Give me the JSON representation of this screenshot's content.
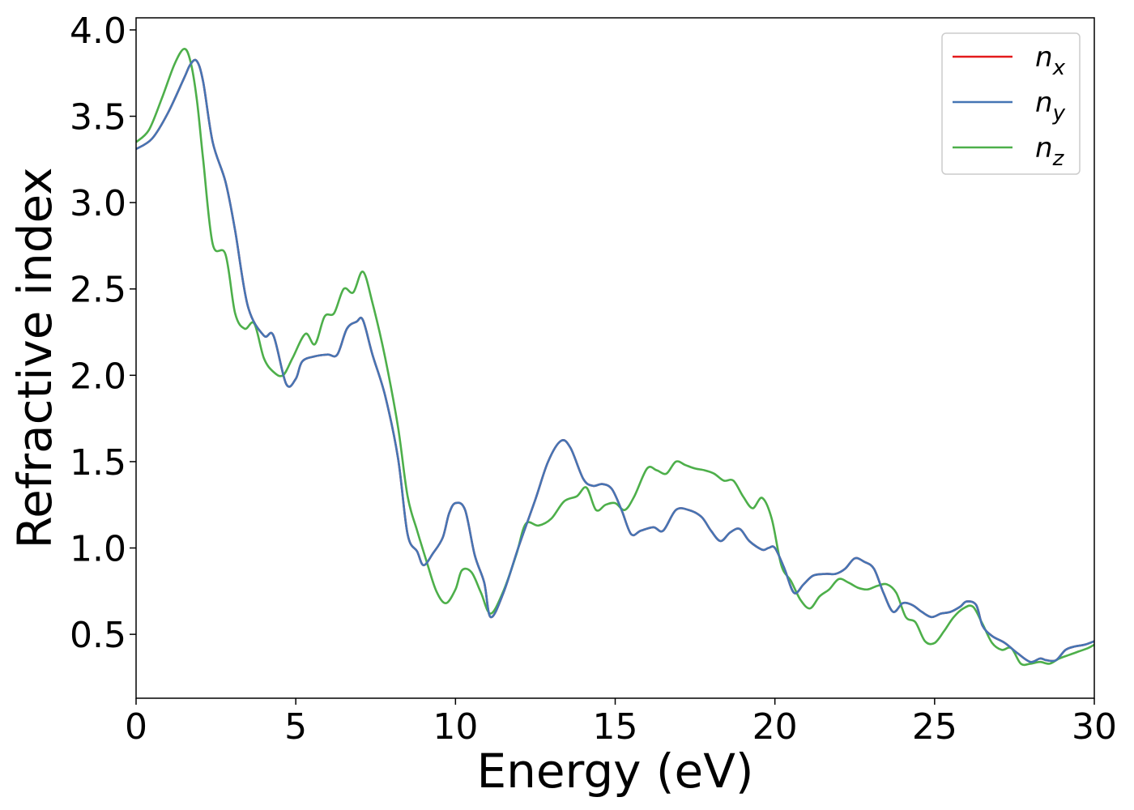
{
  "chart_data": {
    "type": "line",
    "title": "",
    "xlabel": "Energy (eV)",
    "ylabel": "Refractive index",
    "xlim": [
      0,
      30
    ],
    "ylim": [
      0.13,
      4.07
    ],
    "xticks": [
      0,
      5,
      10,
      15,
      20,
      25,
      30
    ],
    "xtick_labels": [
      "0",
      "5",
      "10",
      "15",
      "20",
      "25",
      "30"
    ],
    "yticks": [
      0.5,
      1.0,
      1.5,
      2.0,
      2.5,
      3.0,
      3.5,
      4.0
    ],
    "ytick_labels": [
      "0.5",
      "1.0",
      "1.5",
      "2.0",
      "2.5",
      "3.0",
      "3.5",
      "4.0"
    ],
    "grid": false,
    "legend_position": "top-right",
    "series": [
      {
        "name": "n",
        "sub": "x",
        "color": "#e41a1c",
        "x": [
          0,
          0.5,
          1.0,
          1.5,
          1.7,
          1.9,
          2.1,
          2.4,
          2.8,
          3.1,
          3.5,
          4.0,
          4.3,
          4.7,
          5.0,
          5.2,
          5.6,
          6.0,
          6.3,
          6.6,
          6.9,
          7.1,
          7.4,
          7.8,
          8.2,
          8.5,
          8.8,
          9.0,
          9.3,
          9.6,
          9.8,
          10.0,
          10.3,
          10.6,
          10.9,
          11.1,
          11.5,
          12.0,
          12.5,
          12.9,
          13.3,
          13.6,
          14.0,
          14.3,
          14.6,
          14.9,
          15.2,
          15.5,
          15.8,
          16.2,
          16.5,
          16.9,
          17.3,
          17.7,
          18.0,
          18.3,
          18.6,
          18.9,
          19.2,
          19.6,
          19.8,
          20.0,
          20.3,
          20.6,
          20.9,
          21.2,
          21.6,
          21.9,
          22.2,
          22.5,
          22.8,
          23.1,
          23.4,
          23.7,
          24.0,
          24.3,
          24.6,
          24.9,
          25.2,
          25.5,
          25.8,
          26.0,
          26.3,
          26.5,
          26.8,
          27.2,
          27.6,
          28.0,
          28.3,
          28.5,
          28.8,
          29.1,
          29.4,
          29.7,
          30.0
        ],
        "y": [
          3.31,
          3.37,
          3.52,
          3.72,
          3.8,
          3.82,
          3.7,
          3.35,
          3.12,
          2.84,
          2.4,
          2.23,
          2.23,
          1.95,
          1.98,
          2.08,
          2.11,
          2.12,
          2.12,
          2.27,
          2.31,
          2.32,
          2.12,
          1.88,
          1.52,
          1.08,
          0.98,
          0.9,
          0.97,
          1.06,
          1.2,
          1.26,
          1.22,
          0.96,
          0.8,
          0.6,
          0.74,
          1.02,
          1.28,
          1.5,
          1.62,
          1.58,
          1.4,
          1.36,
          1.37,
          1.34,
          1.22,
          1.08,
          1.1,
          1.12,
          1.1,
          1.22,
          1.22,
          1.18,
          1.1,
          1.04,
          1.09,
          1.11,
          1.04,
          0.99,
          1.0,
          1.0,
          0.88,
          0.74,
          0.79,
          0.84,
          0.85,
          0.85,
          0.88,
          0.94,
          0.92,
          0.88,
          0.74,
          0.63,
          0.68,
          0.67,
          0.63,
          0.6,
          0.62,
          0.63,
          0.66,
          0.69,
          0.67,
          0.55,
          0.49,
          0.45,
          0.39,
          0.34,
          0.36,
          0.35,
          0.35,
          0.41,
          0.43,
          0.44,
          0.46
        ]
      },
      {
        "name": "n",
        "sub": "y",
        "color": "#4575b4",
        "x": [
          0,
          0.5,
          1.0,
          1.5,
          1.7,
          1.9,
          2.1,
          2.4,
          2.8,
          3.1,
          3.5,
          4.0,
          4.3,
          4.7,
          5.0,
          5.2,
          5.6,
          6.0,
          6.3,
          6.6,
          6.9,
          7.1,
          7.4,
          7.8,
          8.2,
          8.5,
          8.8,
          9.0,
          9.3,
          9.6,
          9.8,
          10.0,
          10.3,
          10.6,
          10.9,
          11.1,
          11.5,
          12.0,
          12.5,
          12.9,
          13.3,
          13.6,
          14.0,
          14.3,
          14.6,
          14.9,
          15.2,
          15.5,
          15.8,
          16.2,
          16.5,
          16.9,
          17.3,
          17.7,
          18.0,
          18.3,
          18.6,
          18.9,
          19.2,
          19.6,
          19.8,
          20.0,
          20.3,
          20.6,
          20.9,
          21.2,
          21.6,
          21.9,
          22.2,
          22.5,
          22.8,
          23.1,
          23.4,
          23.7,
          24.0,
          24.3,
          24.6,
          24.9,
          25.2,
          25.5,
          25.8,
          26.0,
          26.3,
          26.5,
          26.8,
          27.2,
          27.6,
          28.0,
          28.3,
          28.5,
          28.8,
          29.1,
          29.4,
          29.7,
          30.0
        ],
        "y": [
          3.31,
          3.37,
          3.52,
          3.72,
          3.8,
          3.82,
          3.7,
          3.35,
          3.12,
          2.84,
          2.4,
          2.23,
          2.23,
          1.95,
          1.98,
          2.08,
          2.11,
          2.12,
          2.12,
          2.27,
          2.31,
          2.32,
          2.12,
          1.88,
          1.52,
          1.08,
          0.98,
          0.9,
          0.97,
          1.06,
          1.2,
          1.26,
          1.22,
          0.96,
          0.8,
          0.6,
          0.74,
          1.02,
          1.28,
          1.5,
          1.62,
          1.58,
          1.4,
          1.36,
          1.37,
          1.34,
          1.22,
          1.08,
          1.1,
          1.12,
          1.1,
          1.22,
          1.22,
          1.18,
          1.1,
          1.04,
          1.09,
          1.11,
          1.04,
          0.99,
          1.0,
          1.0,
          0.88,
          0.74,
          0.79,
          0.84,
          0.85,
          0.85,
          0.88,
          0.94,
          0.92,
          0.88,
          0.74,
          0.63,
          0.68,
          0.67,
          0.63,
          0.6,
          0.62,
          0.63,
          0.66,
          0.69,
          0.67,
          0.55,
          0.49,
          0.45,
          0.39,
          0.34,
          0.36,
          0.35,
          0.35,
          0.41,
          0.43,
          0.44,
          0.46
        ]
      },
      {
        "name": "n",
        "sub": "z",
        "color": "#4daf4a",
        "x": [
          0,
          0.4,
          0.8,
          1.2,
          1.5,
          1.7,
          1.9,
          2.1,
          2.4,
          2.8,
          3.1,
          3.4,
          3.7,
          4.0,
          4.3,
          4.6,
          4.9,
          5.3,
          5.6,
          5.9,
          6.2,
          6.5,
          6.8,
          7.1,
          7.4,
          7.8,
          8.2,
          8.5,
          8.8,
          9.1,
          9.4,
          9.7,
          10.0,
          10.2,
          10.5,
          10.8,
          11.1,
          11.5,
          11.9,
          12.2,
          12.6,
          13.0,
          13.4,
          13.8,
          14.1,
          14.4,
          14.7,
          15.0,
          15.3,
          15.6,
          16.0,
          16.3,
          16.6,
          16.9,
          17.2,
          17.5,
          17.8,
          18.1,
          18.4,
          18.7,
          19.0,
          19.3,
          19.6,
          19.9,
          20.2,
          20.5,
          20.8,
          21.1,
          21.4,
          21.7,
          22.0,
          22.3,
          22.6,
          22.9,
          23.2,
          23.5,
          23.8,
          24.1,
          24.4,
          24.7,
          25.0,
          25.3,
          25.6,
          25.9,
          26.2,
          26.5,
          26.8,
          27.1,
          27.4,
          27.7,
          28.0,
          28.3,
          28.6,
          28.9,
          29.2,
          29.5,
          29.8,
          30.0
        ],
        "y": [
          3.35,
          3.42,
          3.6,
          3.8,
          3.89,
          3.82,
          3.6,
          3.25,
          2.76,
          2.7,
          2.36,
          2.27,
          2.3,
          2.1,
          2.02,
          2.0,
          2.1,
          2.24,
          2.18,
          2.34,
          2.36,
          2.5,
          2.48,
          2.6,
          2.42,
          2.1,
          1.7,
          1.3,
          1.1,
          0.92,
          0.75,
          0.68,
          0.76,
          0.87,
          0.86,
          0.74,
          0.62,
          0.75,
          0.96,
          1.14,
          1.13,
          1.17,
          1.27,
          1.3,
          1.35,
          1.22,
          1.25,
          1.26,
          1.22,
          1.3,
          1.46,
          1.45,
          1.43,
          1.5,
          1.48,
          1.46,
          1.45,
          1.43,
          1.39,
          1.39,
          1.3,
          1.23,
          1.29,
          1.17,
          0.9,
          0.81,
          0.7,
          0.65,
          0.72,
          0.76,
          0.82,
          0.8,
          0.77,
          0.76,
          0.78,
          0.79,
          0.74,
          0.6,
          0.57,
          0.46,
          0.45,
          0.52,
          0.6,
          0.65,
          0.66,
          0.56,
          0.45,
          0.41,
          0.42,
          0.33,
          0.33,
          0.34,
          0.33,
          0.36,
          0.38,
          0.4,
          0.42,
          0.44
        ]
      }
    ]
  }
}
